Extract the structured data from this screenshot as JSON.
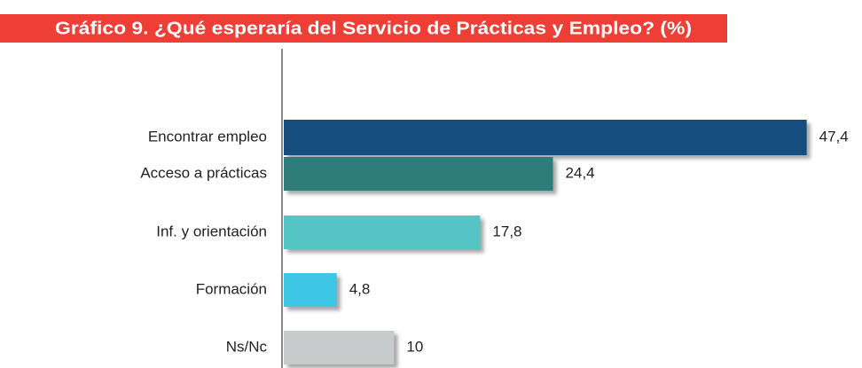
{
  "chart_data": {
    "type": "hbar",
    "title": "Gráfico 9. ¿Qué esperaría del Servicio de Prácticas y Empleo? (%)",
    "categories": [
      "Encontrar empleo",
      "Acceso a prácticas",
      "Inf. y orientación",
      "Formación",
      "Ns/Nc"
    ],
    "values": [
      47.4,
      24.4,
      17.8,
      4.8,
      10
    ],
    "value_labels": [
      "47,4",
      "24,4",
      "17,8",
      "4,8",
      "10"
    ],
    "colors": [
      "#154d7e",
      "#2e7d7a",
      "#55c4c4",
      "#3ec6e6",
      "#c8cbcc"
    ],
    "xlim": [
      0,
      50
    ]
  }
}
